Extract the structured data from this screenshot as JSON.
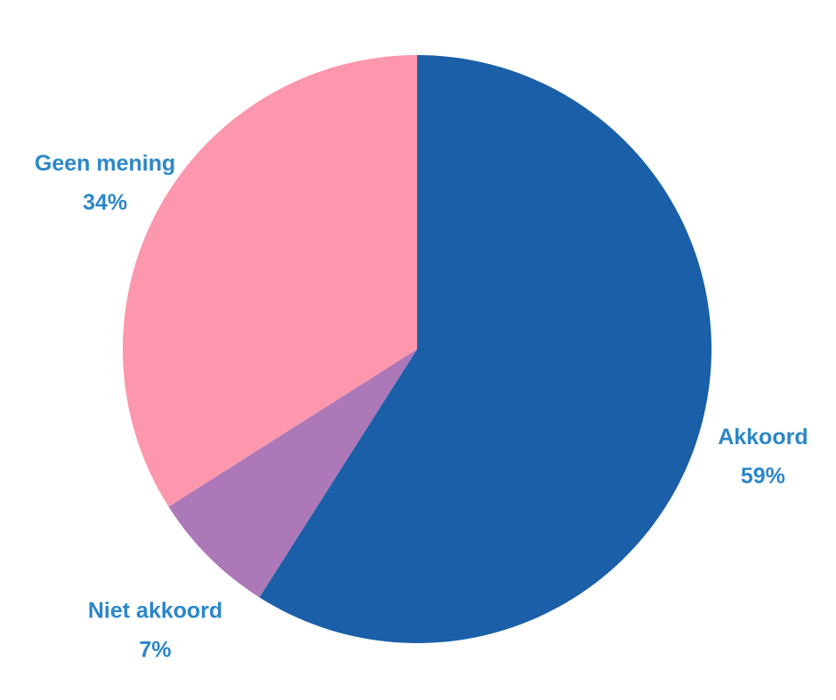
{
  "chart_data": {
    "type": "pie",
    "title": "",
    "slices": [
      {
        "label": "Akkoord",
        "value": 59,
        "value_label": "59%",
        "color": "#1a5fa8"
      },
      {
        "label": "Niet akkoord",
        "value": 7,
        "value_label": "7%",
        "color": "#ad78b8"
      },
      {
        "label": "Geen mening",
        "value": 34,
        "value_label": "34%",
        "color": "#fd97ae"
      }
    ],
    "start_angle_deg": 0,
    "direction": "clockwise",
    "label_color": "#2b87c8"
  }
}
